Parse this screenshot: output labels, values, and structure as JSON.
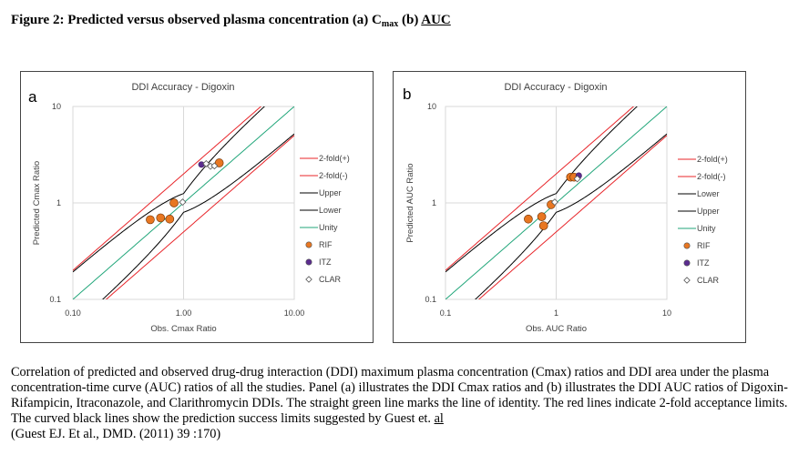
{
  "figure": {
    "title_prefix": "Figure 2: Predicted versus observed plasma concentration (a) C",
    "title_sub": "max",
    "title_mid": " (b) ",
    "title_auc": "AUC"
  },
  "caption": {
    "text": "Correlation of predicted and observed drug-drug interaction (DDI) maximum plasma concentration (Cmax) ratios and DDI area under the plasma concentration-time curve (AUC) ratios of all the studies. Panel (a) illustrates the DDI Cmax ratios and (b) illustrates the DDI AUC ratios of Digoxin- Rifampicin, Itraconazole, and Clarithromycin DDIs. The straight green line marks the line of identity. The red lines indicate 2-fold acceptance limits. The curved black lines show the prediction success limits suggested by Guest et.",
    "al": "al",
    "ref": "(Guest EJ. Et al., DMD. (2011) 39 :170)"
  },
  "colors": {
    "twofold": "#e8252a",
    "guest": "#000000",
    "unity": "#21a67a",
    "RIF": "#e87722",
    "ITZ": "#5b2c8f",
    "CLAR": "#ffffff"
  },
  "chart_data": [
    {
      "panel_label": "a",
      "type": "scatter",
      "title": "DDI Accuracy - Digoxin",
      "xlabel": "Obs. Cmax Ratio",
      "ylabel": "Predicted Cmax Ratio",
      "scale": "log",
      "xlim": [
        0.1,
        10
      ],
      "ylim": [
        0.1,
        10
      ],
      "x_ticks": [
        "0.10",
        "1.00",
        "10.00"
      ],
      "y_ticks": [
        "10",
        "1",
        "0.1"
      ],
      "grid": true,
      "legend_position": "right",
      "legend": [
        {
          "key": "twofold_plus",
          "label": "2-fold(+)",
          "kind": "line",
          "color": "#e8252a"
        },
        {
          "key": "twofold_minus",
          "label": "2-fold(-)",
          "kind": "line",
          "color": "#e8252a"
        },
        {
          "key": "upper",
          "label": "Upper",
          "kind": "line",
          "color": "#000000"
        },
        {
          "key": "lower",
          "label": "Lower",
          "kind": "line",
          "color": "#000000"
        },
        {
          "key": "unity",
          "label": "Unity",
          "kind": "line",
          "color": "#21a67a"
        },
        {
          "key": "RIF",
          "label": "RIF",
          "kind": "circle",
          "color": "#e87722"
        },
        {
          "key": "ITZ",
          "label": "ITZ",
          "kind": "circle",
          "color": "#5b2c8f"
        },
        {
          "key": "CLAR",
          "label": "CLAR",
          "kind": "diamond",
          "color": "#ffffff"
        }
      ],
      "series": [
        {
          "name": "RIF",
          "points": [
            [
              0.5,
              0.67
            ],
            [
              0.62,
              0.7
            ],
            [
              0.75,
              0.68
            ],
            [
              0.82,
              1.0
            ],
            [
              2.1,
              2.6
            ]
          ]
        },
        {
          "name": "ITZ",
          "points": [
            [
              1.45,
              2.5
            ]
          ]
        },
        {
          "name": "CLAR",
          "points": [
            [
              0.98,
              1.02
            ],
            [
              1.6,
              2.55
            ],
            [
              1.75,
              2.4
            ],
            [
              1.9,
              2.42
            ]
          ]
        }
      ]
    },
    {
      "panel_label": "b",
      "type": "scatter",
      "title": "DDI Accuracy - Digoxin",
      "xlabel": "Obs. AUC Ratio",
      "ylabel": "Predicted AUC Ratio",
      "scale": "log",
      "xlim": [
        0.1,
        10
      ],
      "ylim": [
        0.1,
        10
      ],
      "x_ticks": [
        "0.1",
        "1",
        "10"
      ],
      "y_ticks": [
        "10",
        "1",
        "0.1"
      ],
      "grid": true,
      "legend_position": "right",
      "legend": [
        {
          "key": "twofold_plus",
          "label": "2-fold(+)",
          "kind": "line",
          "color": "#e8252a"
        },
        {
          "key": "twofold_minus",
          "label": "2-fold(-)",
          "kind": "line",
          "color": "#e8252a"
        },
        {
          "key": "lower",
          "label": "Lower",
          "kind": "line",
          "color": "#000000"
        },
        {
          "key": "upper",
          "label": "Upper",
          "kind": "line",
          "color": "#000000"
        },
        {
          "key": "unity",
          "label": "Unity",
          "kind": "line",
          "color": "#21a67a"
        },
        {
          "key": "RIF",
          "label": "RIF",
          "kind": "circle",
          "color": "#e87722"
        },
        {
          "key": "ITZ",
          "label": "ITZ",
          "kind": "circle",
          "color": "#5b2c8f"
        },
        {
          "key": "CLAR",
          "label": "CLAR",
          "kind": "diamond",
          "color": "#ffffff"
        }
      ],
      "series": [
        {
          "name": "RIF",
          "points": [
            [
              0.56,
              0.68
            ],
            [
              0.74,
              0.72
            ],
            [
              0.77,
              0.58
            ],
            [
              0.9,
              0.96
            ],
            [
              1.35,
              1.85
            ],
            [
              1.45,
              1.85
            ]
          ]
        },
        {
          "name": "ITZ",
          "points": [
            [
              1.6,
              1.92
            ]
          ]
        },
        {
          "name": "CLAR",
          "points": [
            [
              0.97,
              1.02
            ],
            [
              1.55,
              1.78
            ]
          ]
        }
      ]
    }
  ]
}
